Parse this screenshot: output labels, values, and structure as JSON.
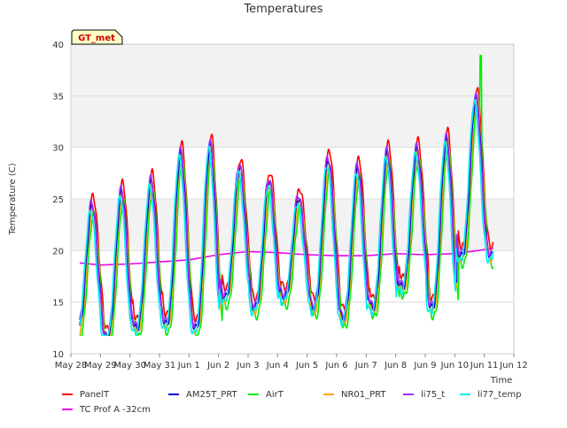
{
  "chart_data": {
    "type": "line",
    "title": "Temperatures",
    "xlabel": "Time",
    "ylabel": "Temperature (C)",
    "site_badge": "GT_met",
    "ylim": [
      10,
      40
    ],
    "yticks": [
      10,
      15,
      20,
      25,
      30,
      35,
      40
    ],
    "xlim": [
      0,
      15
    ],
    "xticks": [
      {
        "x": 0,
        "label": "May 28"
      },
      {
        "x": 1,
        "label": "May 29"
      },
      {
        "x": 2,
        "label": "May 30"
      },
      {
        "x": 3,
        "label": "May 31"
      },
      {
        "x": 4,
        "label": "Jun 1"
      },
      {
        "x": 5,
        "label": "Jun 2"
      },
      {
        "x": 6,
        "label": "Jun 3"
      },
      {
        "x": 7,
        "label": "Jun 4"
      },
      {
        "x": 8,
        "label": "Jun 5"
      },
      {
        "x": 9,
        "label": "Jun 6"
      },
      {
        "x": 10,
        "label": "Jun 7"
      },
      {
        "x": 11,
        "label": "Jun 8"
      },
      {
        "x": 12,
        "label": "Jun 9"
      },
      {
        "x": 13,
        "label": "Jun 10"
      },
      {
        "x": 14,
        "label": "Jun 11"
      },
      {
        "x": 15,
        "label": "Jun 12"
      }
    ],
    "background_bands": [
      [
        20,
        25
      ],
      [
        30,
        40
      ]
    ],
    "grid": true,
    "legend_position": "bottom",
    "daily_extremes": {
      "day": [
        0.6,
        1.6,
        2.6,
        3.6,
        4.6,
        5.6,
        6.6,
        7.6,
        8.6,
        9.6,
        10.6,
        11.6,
        12.6,
        13.6
      ],
      "max": [
        24.9,
        26.2,
        27.2,
        30.0,
        30.8,
        28.5,
        27.2,
        25.6,
        29.3,
        28.5,
        30.0,
        30.3,
        31.3,
        35.3
      ],
      "min": [
        12.8,
        12.0,
        13.0,
        13.4,
        13.0,
        16.0,
        15.0,
        16.0,
        15.0,
        14.0,
        15.0,
        17.0,
        15.0,
        20.0
      ]
    },
    "series": [
      {
        "name": "PanelT",
        "color": "#ff0000",
        "offset": 0.4,
        "phase": 0.0
      },
      {
        "name": "AM25T_PRT",
        "color": "#0000cc",
        "offset": -0.5,
        "phase": 0.03
      },
      {
        "name": "AirT",
        "color": "#00ee00",
        "offset": -1.4,
        "phase": -0.02
      },
      {
        "name": "NR01_PRT",
        "color": "#ffa500",
        "offset": -0.8,
        "phase": 0.01
      },
      {
        "name": "li75_t",
        "color": "#9b30ff",
        "offset": -0.2,
        "phase": 0.05
      },
      {
        "name": "li77_temp",
        "color": "#00eeee",
        "offset": -1.0,
        "phase": 0.08
      },
      {
        "name": "TC Prof A -32cm",
        "color": "#ee00ee",
        "kind": "soil",
        "x": [
          0.3,
          1.0,
          2.0,
          3.0,
          4.0,
          5.0,
          6.0,
          7.0,
          8.0,
          9.0,
          10.0,
          11.0,
          12.0,
          13.0,
          14.3
        ],
        "y": [
          18.8,
          18.6,
          18.7,
          18.9,
          19.1,
          19.6,
          19.9,
          19.8,
          19.6,
          19.5,
          19.5,
          19.7,
          19.6,
          19.7,
          20.2
        ]
      }
    ]
  }
}
